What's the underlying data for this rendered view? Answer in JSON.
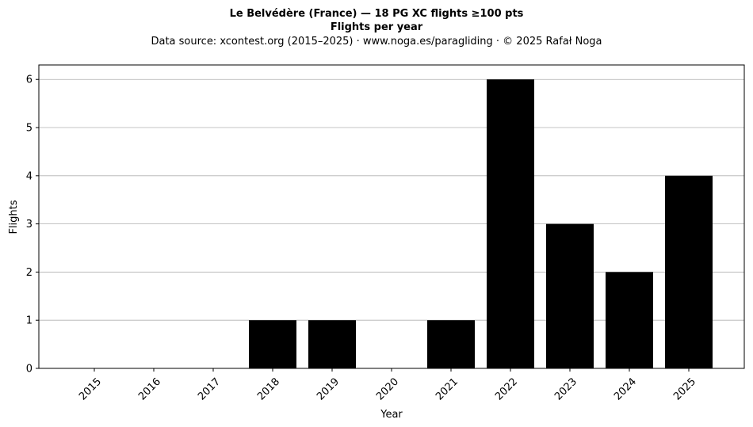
{
  "chart_data": {
    "type": "bar",
    "title": "Le Belvédère (France)  —  18 PG XC flights ≥100 pts",
    "title_line2": "Flights per year",
    "subtitle": "Data source: xcontest.org (2015–2025)  ·  www.noga.es/paragliding  ·  © 2025 Rafał Noga",
    "xlabel": "Year",
    "ylabel": "Flights",
    "categories": [
      "2015",
      "2016",
      "2017",
      "2018",
      "2019",
      "2020",
      "2021",
      "2022",
      "2023",
      "2024",
      "2025"
    ],
    "values": [
      0,
      0,
      0,
      1,
      1,
      0,
      1,
      6,
      3,
      2,
      4
    ],
    "ylim": [
      0,
      6.3
    ],
    "yticks": [
      0,
      1,
      2,
      3,
      4,
      5,
      6
    ],
    "grid": "y",
    "bar_color": "#000000",
    "grid_color": "#b0b0b0"
  }
}
